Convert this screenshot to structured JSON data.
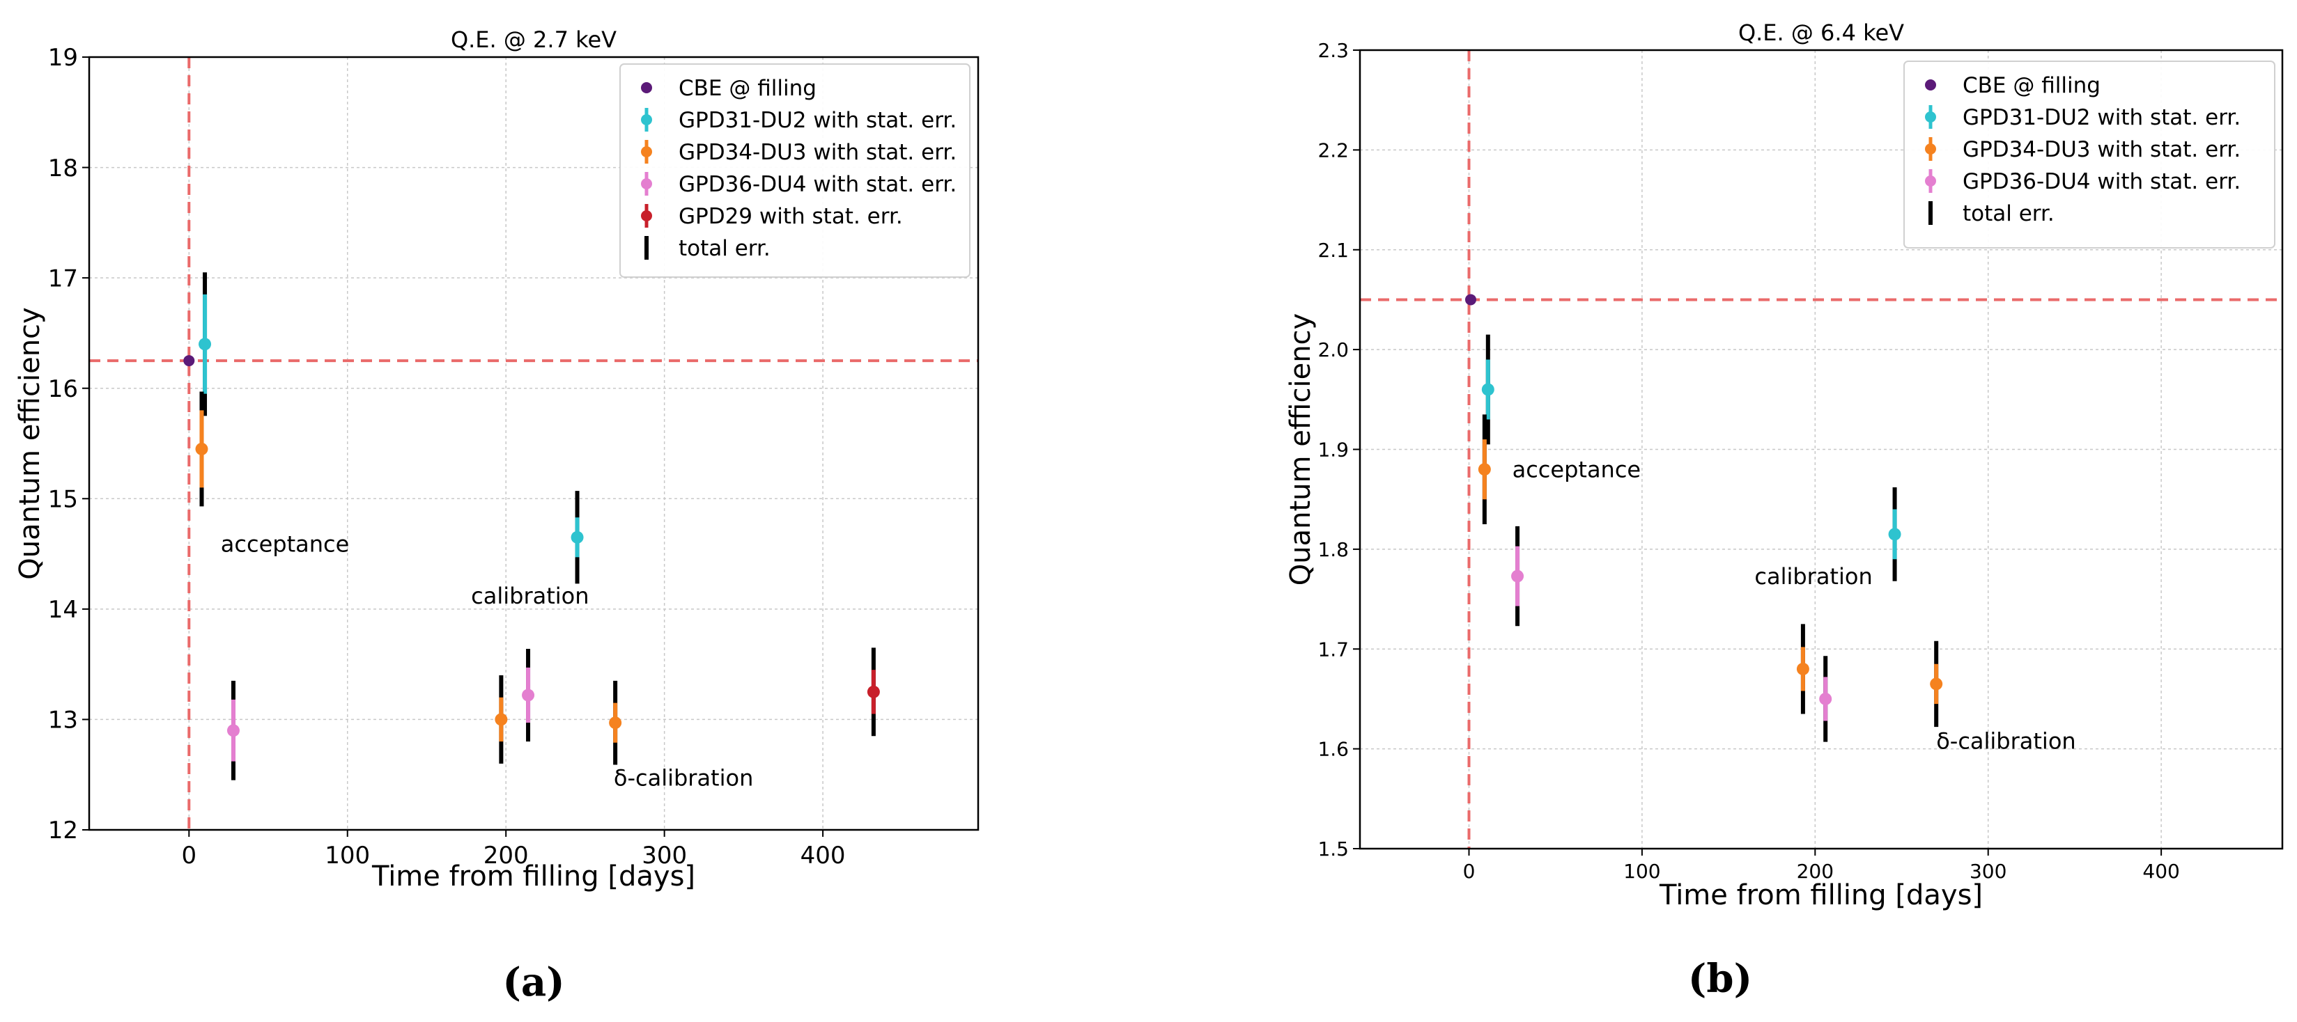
{
  "colors": {
    "cbe": "#5b1a78",
    "gpd31": "#2ec3cf",
    "gpd34": "#f5821f",
    "gpd36": "#e47fd0",
    "gpd29": "#c8202b",
    "total": "#000000",
    "ref": "#ea6a6a",
    "grid": "#c8c8c8"
  },
  "chart_data": [
    {
      "type": "scatter",
      "panel_label": "(a)",
      "title": "Q.E. @ 2.7 keV",
      "xlabel": "Time from filling [days]",
      "ylabel": "Quantum efficiency",
      "xlim": [
        -63,
        498
      ],
      "ylim": [
        12,
        19
      ],
      "xticks": [
        0,
        100,
        200,
        300,
        400
      ],
      "yticks": [
        12,
        13,
        14,
        15,
        16,
        17,
        18,
        19
      ],
      "grid": true,
      "ref_x": 0,
      "ref_y": 16.25,
      "legend": [
        {
          "label": "CBE @ filling",
          "color_key": "cbe",
          "marker": "dot"
        },
        {
          "label": "GPD31-DU2 with stat. err.",
          "color_key": "gpd31",
          "marker": "errdot"
        },
        {
          "label": "GPD34-DU3 with stat. err.",
          "color_key": "gpd34",
          "marker": "errdot"
        },
        {
          "label": "GPD36-DU4  with stat. err.",
          "color_key": "gpd36",
          "marker": "errdot"
        },
        {
          "label": "GPD29  with stat. err.",
          "color_key": "gpd29",
          "marker": "errdot"
        },
        {
          "label": "total err.",
          "color_key": "total",
          "marker": "bar"
        }
      ],
      "series": [
        {
          "name": "CBE @ filling",
          "color_key": "cbe",
          "points": [
            {
              "x": 0,
              "y": 16.25
            }
          ]
        },
        {
          "name": "GPD31-DU2",
          "color_key": "gpd31",
          "points": [
            {
              "x": 10,
              "y": 16.4,
              "stat": 0.45,
              "total": 0.65
            },
            {
              "x": 245,
              "y": 14.65,
              "stat": 0.18,
              "total": 0.42
            }
          ]
        },
        {
          "name": "GPD34-DU3",
          "color_key": "gpd34",
          "points": [
            {
              "x": 8,
              "y": 15.45,
              "stat": 0.35,
              "total": 0.52
            },
            {
              "x": 197,
              "y": 13.0,
              "stat": 0.2,
              "total": 0.4
            },
            {
              "x": 269,
              "y": 12.97,
              "stat": 0.18,
              "total": 0.38
            }
          ]
        },
        {
          "name": "GPD36-DU4",
          "color_key": "gpd36",
          "points": [
            {
              "x": 28,
              "y": 12.9,
              "stat": 0.28,
              "total": 0.45
            },
            {
              "x": 214,
              "y": 13.22,
              "stat": 0.25,
              "total": 0.42
            }
          ]
        },
        {
          "name": "GPD29",
          "color_key": "gpd29",
          "points": [
            {
              "x": 432,
              "y": 13.25,
              "stat": 0.2,
              "total": 0.4
            }
          ]
        }
      ],
      "annotations": [
        {
          "text": "acceptance",
          "x": 20,
          "y": 14.52
        },
        {
          "text": "calibration",
          "x": 178,
          "y": 14.05
        },
        {
          "text": "δ-calibration",
          "x": 268,
          "y": 12.4
        }
      ]
    },
    {
      "type": "scatter",
      "panel_label": "(b)",
      "title": "Q.E. @ 6.4 keV",
      "xlabel": "Time from filling [days]",
      "ylabel": "Quantum efficiency",
      "xlim": [
        -63,
        470
      ],
      "ylim": [
        1.5,
        2.3
      ],
      "xticks": [
        0,
        100,
        200,
        300,
        400
      ],
      "yticks": [
        1.5,
        1.6,
        1.7,
        1.8,
        1.9,
        2.0,
        2.1,
        2.2,
        2.3
      ],
      "ytick_labels": [
        "1.5",
        "1.6",
        "1.7",
        "1.8",
        "1.9",
        "2.0",
        "2.1",
        "2.2",
        "2.3"
      ],
      "grid": true,
      "ref_x": 0,
      "ref_y": 2.05,
      "legend": [
        {
          "label": "CBE @ filling",
          "color_key": "cbe",
          "marker": "dot"
        },
        {
          "label": "GPD31-DU2 with stat. err.",
          "color_key": "gpd31",
          "marker": "errdot"
        },
        {
          "label": "GPD34-DU3 with stat. err.",
          "color_key": "gpd34",
          "marker": "errdot"
        },
        {
          "label": "GPD36-DU4  with stat. err.",
          "color_key": "gpd36",
          "marker": "errdot"
        },
        {
          "label": "total err.",
          "color_key": "total",
          "marker": "bar"
        }
      ],
      "series": [
        {
          "name": "CBE @ filling",
          "color_key": "cbe",
          "points": [
            {
              "x": 1,
              "y": 2.05
            }
          ]
        },
        {
          "name": "GPD31-DU2",
          "color_key": "gpd31",
          "points": [
            {
              "x": 11,
              "y": 1.96,
              "stat": 0.03,
              "total": 0.055
            },
            {
              "x": 246,
              "y": 1.815,
              "stat": 0.025,
              "total": 0.047
            }
          ]
        },
        {
          "name": "GPD34-DU3",
          "color_key": "gpd34",
          "points": [
            {
              "x": 9,
              "y": 1.88,
              "stat": 0.03,
              "total": 0.055
            },
            {
              "x": 193,
              "y": 1.68,
              "stat": 0.022,
              "total": 0.045
            },
            {
              "x": 270,
              "y": 1.665,
              "stat": 0.02,
              "total": 0.043
            }
          ]
        },
        {
          "name": "GPD36-DU4",
          "color_key": "gpd36",
          "points": [
            {
              "x": 28,
              "y": 1.773,
              "stat": 0.03,
              "total": 0.05
            },
            {
              "x": 206,
              "y": 1.65,
              "stat": 0.022,
              "total": 0.043
            }
          ]
        }
      ],
      "annotations": [
        {
          "text": "acceptance",
          "x": 25,
          "y": 1.872
        },
        {
          "text": "calibration",
          "x": 165,
          "y": 1.765
        },
        {
          "text": "δ-calibration",
          "x": 270,
          "y": 1.6
        }
      ]
    }
  ]
}
